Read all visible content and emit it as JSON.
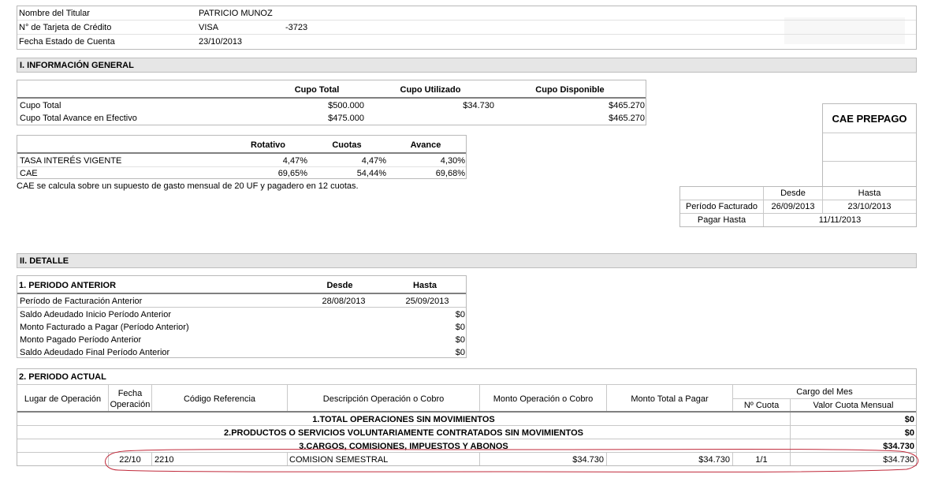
{
  "header": {
    "rows": [
      {
        "label": "Nombre del Titular",
        "value": "PATRICIO MUNOZ",
        "extra": ""
      },
      {
        "label": "N° de Tarjeta de Crédito",
        "value": "VISA",
        "extra": "-3723"
      },
      {
        "label": "Fecha Estado de Cuenta",
        "value": "23/10/2013",
        "extra": ""
      }
    ]
  },
  "info_general": {
    "title": "I. INFORMACIÓN GENERAL",
    "cupo": {
      "headers": [
        "Cupo Total",
        "Cupo Utilizado",
        "Cupo Disponible"
      ],
      "rows": [
        {
          "label": "Cupo Total",
          "total": "$500.000",
          "utilizado": "$34.730",
          "disponible": "$465.270"
        },
        {
          "label": "Cupo Total Avance en Efectivo",
          "total": "$475.000",
          "utilizado": "",
          "disponible": "$465.270"
        }
      ]
    },
    "tasas": {
      "headers": [
        "Rotativo",
        "Cuotas",
        "Avance"
      ],
      "rows": [
        {
          "label": "TASA INTERÉS VIGENTE",
          "rotativo": "4,47%",
          "cuotas": "4,47%",
          "avance": "4,30%"
        },
        {
          "label": "CAE",
          "rotativo": "69,65%",
          "cuotas": "54,44%",
          "avance": "69,68%"
        }
      ],
      "note": "CAE se calcula sobre un supuesto de gasto mensual de 20 UF y pagadero en 12 cuotas."
    },
    "cae_box": {
      "title": "CAE PREPAGO",
      "headers": [
        "Desde",
        "Hasta"
      ],
      "periodo_label": "Período Facturado",
      "periodo_desde": "26/09/2013",
      "periodo_hasta": "23/10/2013",
      "pagar_label": "Pagar Hasta",
      "pagar_value": "11/11/2013"
    }
  },
  "detalle": {
    "title": "II. DETALLE",
    "periodo_anterior": {
      "title": "1. PERIODO ANTERIOR",
      "headers": [
        "Desde",
        "Hasta"
      ],
      "facturacion_label": "Período de Facturación Anterior",
      "facturacion_desde": "28/08/2013",
      "facturacion_hasta": "25/09/2013",
      "rows": [
        {
          "label": "Saldo Adeudado Inicio Período Anterior",
          "value": "$0"
        },
        {
          "label": "Monto Facturado a Pagar (Período Anterior)",
          "value": "$0"
        },
        {
          "label": "Monto Pagado Período Anterior",
          "value": "$0"
        },
        {
          "label": "Saldo Adeudado Final Período Anterior",
          "value": "$0"
        }
      ]
    },
    "periodo_actual": {
      "title": "2. PERIODO ACTUAL",
      "columns": {
        "lugar": "Lugar de Operación",
        "fecha": "Fecha Operación",
        "codigo": "Código Referencia",
        "descripcion": "Descripción Operación o Cobro",
        "monto_op": "Monto Operación o Cobro",
        "monto_total": "Monto Total a Pagar",
        "cargo_mes": "Cargo del Mes",
        "n_cuota": "Nº Cuota",
        "valor_cuota": "Valor Cuota Mensual"
      },
      "sections": [
        {
          "label": "1.TOTAL OPERACIONES SIN MOVIMIENTOS",
          "value": "$0"
        },
        {
          "label": "2.PRODUCTOS O SERVICIOS VOLUNTARIAMENTE CONTRATADOS SIN MOVIMIENTOS",
          "value": "$0"
        },
        {
          "label": "3.CARGOS, COMISIONES, IMPUESTOS Y ABONOS",
          "value": "$34.730"
        }
      ],
      "transaction": {
        "lugar": "",
        "fecha": "22/10",
        "codigo": "2210",
        "descripcion": "COMISION SEMESTRAL",
        "monto_op": "$34.730",
        "monto_total": "$34.730",
        "n_cuota": "1/1",
        "valor_cuota": "$34.730"
      }
    }
  },
  "colors": {
    "header_bg": "#e6e6e6",
    "border": "#b9b9b9",
    "highlight": "#c0293a"
  }
}
